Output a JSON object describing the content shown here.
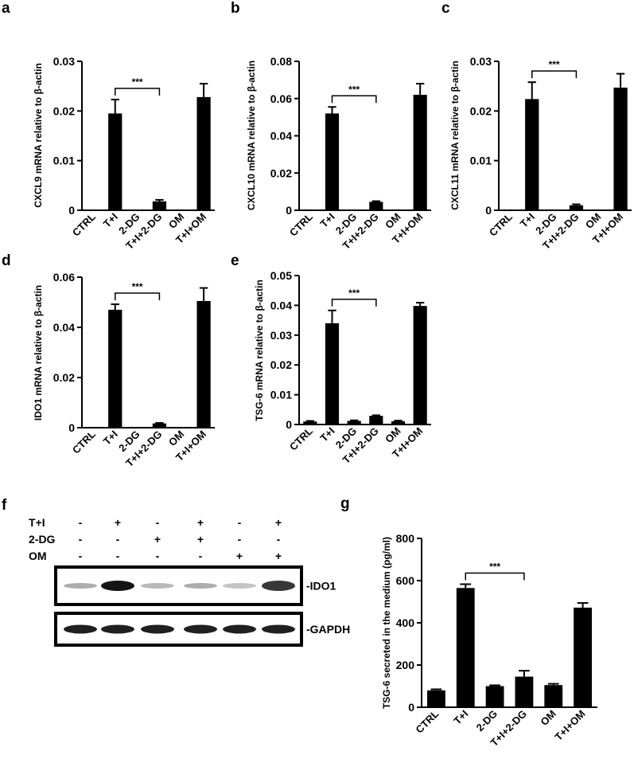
{
  "chart_data": [
    {
      "panel": "a",
      "type": "bar",
      "ylabel": "CXCL9 mRNA relative to β-actin",
      "categories": [
        "CTRL",
        "T+I",
        "2-DG",
        "T+I+2-DG",
        "OM",
        "T+I+OM"
      ],
      "values": [
        0,
        0.0195,
        0,
        0.0018,
        0,
        0.0228
      ],
      "errors": [
        0,
        0.0028,
        0,
        0.0003,
        0,
        0.0027
      ],
      "ylim": [
        0,
        0.03
      ],
      "yticks": [
        "0",
        "0.01",
        "0.02",
        "0.03"
      ],
      "yticks_values": [
        0,
        0.01,
        0.02,
        0.03
      ],
      "significance": {
        "from": 1,
        "to": 3,
        "label": "***"
      }
    },
    {
      "panel": "b",
      "type": "bar",
      "ylabel": "CXCL10 mRNA relative to β-actin",
      "categories": [
        "CTRL",
        "T+I",
        "2-DG",
        "T+I+2-DG",
        "OM",
        "T+I+OM"
      ],
      "values": [
        0,
        0.052,
        0,
        0.0045,
        0,
        0.062
      ],
      "errors": [
        0,
        0.0035,
        0,
        0.0004,
        0,
        0.006
      ],
      "ylim": [
        0,
        0.08
      ],
      "yticks": [
        "0",
        "0.02",
        "0.04",
        "0.06",
        "0.08"
      ],
      "yticks_values": [
        0,
        0.02,
        0.04,
        0.06,
        0.08
      ],
      "significance": {
        "from": 1,
        "to": 3,
        "label": "***"
      }
    },
    {
      "panel": "c",
      "type": "bar",
      "ylabel": "CXCL11 mRNA relative to β-actin",
      "categories": [
        "CTRL",
        "T+I",
        "2-DG",
        "T+I+2-DG",
        "OM",
        "T+I+OM"
      ],
      "values": [
        0,
        0.0224,
        0,
        0.001,
        0,
        0.0247
      ],
      "errors": [
        0,
        0.0034,
        0,
        0.0002,
        0,
        0.0028
      ],
      "ylim": [
        0,
        0.03
      ],
      "yticks": [
        "0",
        "0.01",
        "0.02",
        "0.03"
      ],
      "yticks_values": [
        0,
        0.01,
        0.02,
        0.03
      ],
      "significance": {
        "from": 1,
        "to": 3,
        "label": "***"
      }
    },
    {
      "panel": "d",
      "type": "bar",
      "ylabel": "IDO1 mRNA relative to β-actin",
      "categories": [
        "CTRL",
        "T+I",
        "2-DG",
        "T+I+2-DG",
        "OM",
        "T+I+OM"
      ],
      "values": [
        0,
        0.047,
        0,
        0.0017,
        0,
        0.0505
      ],
      "errors": [
        0,
        0.0022,
        0,
        0.0002,
        0,
        0.0052
      ],
      "ylim": [
        0,
        0.06
      ],
      "yticks": [
        "0",
        "0.02",
        "0.04",
        "0.06"
      ],
      "yticks_values": [
        0,
        0.02,
        0.04,
        0.06
      ],
      "significance": {
        "from": 1,
        "to": 3,
        "label": "***"
      }
    },
    {
      "panel": "e",
      "type": "bar",
      "ylabel": "TSG-6 mRNA relative to β-actin",
      "categories": [
        "CTRL",
        "T+I",
        "2-DG",
        "T+I+2-DG",
        "OM",
        "T+I+OM"
      ],
      "values": [
        0.001,
        0.034,
        0.0012,
        0.0029,
        0.0011,
        0.0398
      ],
      "errors": [
        0.0002,
        0.0043,
        0.0002,
        0.0002,
        0.0002,
        0.0011
      ],
      "ylim": [
        0,
        0.05
      ],
      "yticks": [
        "0",
        "0.01",
        "0.02",
        "0.03",
        "0.04",
        "0.05"
      ],
      "yticks_values": [
        0,
        0.01,
        0.02,
        0.03,
        0.04,
        0.05
      ],
      "significance": {
        "from": 1,
        "to": 3,
        "label": "***"
      }
    },
    {
      "panel": "g",
      "type": "bar",
      "ylabel": "TSG-6 secreted in the medium (pg/ml)",
      "categories": [
        "CTRL",
        "T+I",
        "2-DG",
        "T+I+2-DG",
        "OM",
        "T+I+OM"
      ],
      "values": [
        80,
        565,
        100,
        145,
        105,
        472
      ],
      "errors": [
        5,
        18,
        4,
        28,
        6,
        22
      ],
      "ylim": [
        0,
        800
      ],
      "yticks": [
        "0",
        "200",
        "400",
        "600",
        "800"
      ],
      "yticks_values": [
        0,
        200,
        400,
        600,
        800
      ],
      "significance": {
        "from": 1,
        "to": 3,
        "label": "***"
      }
    }
  ],
  "western_blot": {
    "panel": "f",
    "rows": [
      {
        "label": "T+I",
        "signs": [
          "-",
          "+",
          "-",
          "+",
          "-",
          "+"
        ]
      },
      {
        "label": "2-DG",
        "signs": [
          "-",
          "-",
          "+",
          "+",
          "-",
          "-"
        ]
      },
      {
        "label": "OM",
        "signs": [
          "-",
          "-",
          "-",
          "-",
          "+",
          "+"
        ]
      }
    ],
    "bands": [
      {
        "label": "-IDO1",
        "intensity": [
          0.35,
          1.0,
          0.3,
          0.35,
          0.25,
          0.85
        ]
      },
      {
        "label": "-GAPDH",
        "intensity": [
          0.95,
          0.95,
          0.95,
          0.95,
          0.95,
          0.95
        ]
      }
    ]
  }
}
